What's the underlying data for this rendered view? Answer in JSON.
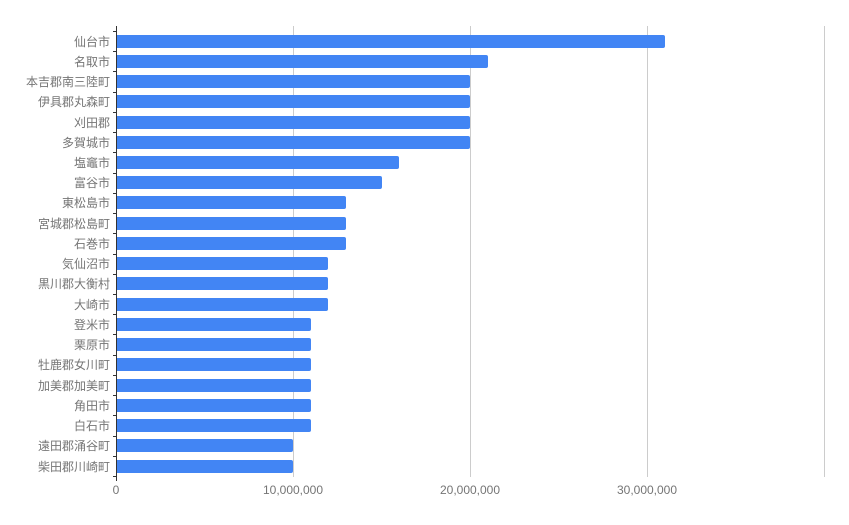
{
  "chart_data": {
    "type": "bar",
    "orientation": "horizontal",
    "title": "",
    "xlabel": "",
    "ylabel": "",
    "legend": "none",
    "grid": true,
    "xlim": [
      0,
      40000000
    ],
    "categories": [
      "仙台市",
      "名取市",
      "本吉郡南三陸町",
      "伊具郡丸森町",
      "刈田郡",
      "多賀城市",
      "塩竈市",
      "富谷市",
      "東松島市",
      "宮城郡松島町",
      "石巻市",
      "気仙沼市",
      "黒川郡大衡村",
      "大崎市",
      "登米市",
      "栗原市",
      "牡鹿郡女川町",
      "加美郡加美町",
      "角田市",
      "白石市",
      "遠田郡涌谷町",
      "柴田郡川崎町"
    ],
    "values": [
      31000000,
      21000000,
      20000000,
      20000000,
      20000000,
      20000000,
      16000000,
      15000000,
      13000000,
      13000000,
      13000000,
      12000000,
      12000000,
      12000000,
      11000000,
      11000000,
      11000000,
      11000000,
      11000000,
      11000000,
      10000000,
      10000000
    ],
    "x_ticks": [
      {
        "value": 0,
        "label": "0"
      },
      {
        "value": 10000000,
        "label": "10,000,000"
      },
      {
        "value": 20000000,
        "label": "20,000,000"
      },
      {
        "value": 30000000,
        "label": "30,000,000"
      },
      {
        "value": 40000000,
        "label": ""
      }
    ],
    "colors": {
      "bar": "#4285f4",
      "gridline": "#cccccc",
      "axis_line": "#333333",
      "tick_label": "#757575",
      "background": "#ffffff"
    }
  },
  "layout_note": ""
}
